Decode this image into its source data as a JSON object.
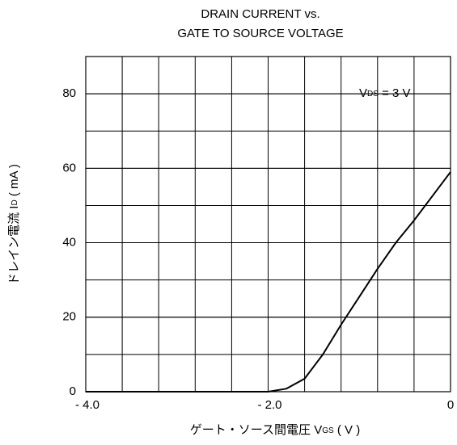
{
  "chart_data": {
    "type": "line",
    "title": [
      "DRAIN CURRENT vs.",
      "GATE TO SOURCE VOLTAGE"
    ],
    "x_label": {
      "main": "ゲート・ソース間電圧 V",
      "sub": "GS",
      "rest": " ( V )"
    },
    "y_label": {
      "main": "ドレイン電流 I",
      "sub": "D",
      "rest": " ( mA )"
    },
    "annotation": {
      "main": "V",
      "sub": "DS",
      "rest": " = 3 V"
    },
    "x": [
      -4,
      -2,
      -1.8,
      -1.6,
      -1.4,
      -1.2,
      -1,
      -0.8,
      -0.6,
      -0.4,
      -0.2,
      0
    ],
    "series": [
      {
        "color": "#000000",
        "values": [
          0,
          0,
          0.8,
          3.5,
          10,
          18,
          25.5,
          33,
          40,
          46,
          52.5,
          59
        ]
      }
    ],
    "xlim": [
      -4,
      0
    ],
    "xticks": [
      {
        "value": -4,
        "label": "- 4.0"
      },
      {
        "value": -2,
        "label": "- 2.0"
      },
      0
    ],
    "ylim": [
      0,
      90
    ],
    "yticks": [
      0,
      20,
      40,
      60,
      80
    ],
    "grid": true
  }
}
